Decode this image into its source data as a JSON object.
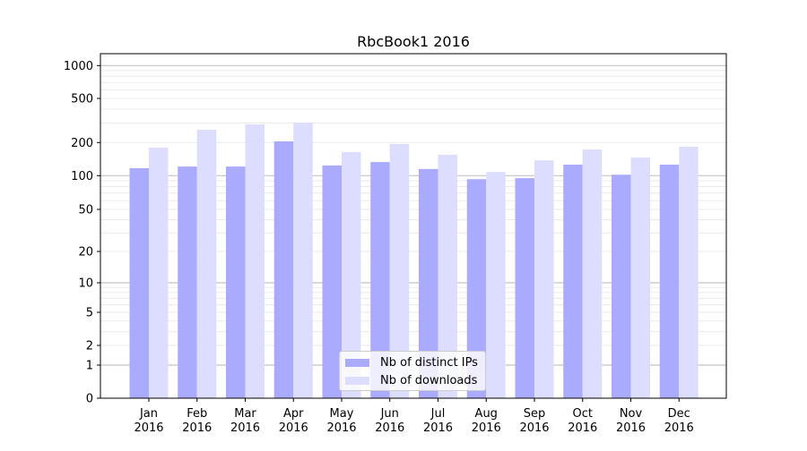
{
  "chart_data": {
    "type": "bar",
    "title": "RbcBook1 2016",
    "xlabel": "",
    "ylabel": "",
    "yscale": "symlog",
    "ylim": [
      0,
      1300
    ],
    "yticks": [
      0,
      1,
      2,
      5,
      10,
      20,
      50,
      100,
      200,
      500,
      1000
    ],
    "grid": true,
    "legend_position": "bottom-center",
    "categories": [
      "Jan\n2016",
      "Feb\n2016",
      "Mar\n2016",
      "Apr\n2016",
      "May\n2016",
      "Jun\n2016",
      "Jul\n2016",
      "Aug\n2016",
      "Sep\n2016",
      "Oct\n2016",
      "Nov\n2016",
      "Dec\n2016"
    ],
    "series": [
      {
        "name": "Nb of distinct IPs",
        "color": "#aaaaff",
        "values": [
          117,
          121,
          121,
          205,
          124,
          133,
          115,
          93,
          95,
          126,
          102,
          126
        ]
      },
      {
        "name": "Nb of downloads",
        "color": "#ddddff",
        "values": [
          180,
          261,
          292,
          303,
          164,
          194,
          155,
          108,
          138,
          173,
          146,
          183
        ]
      }
    ]
  }
}
